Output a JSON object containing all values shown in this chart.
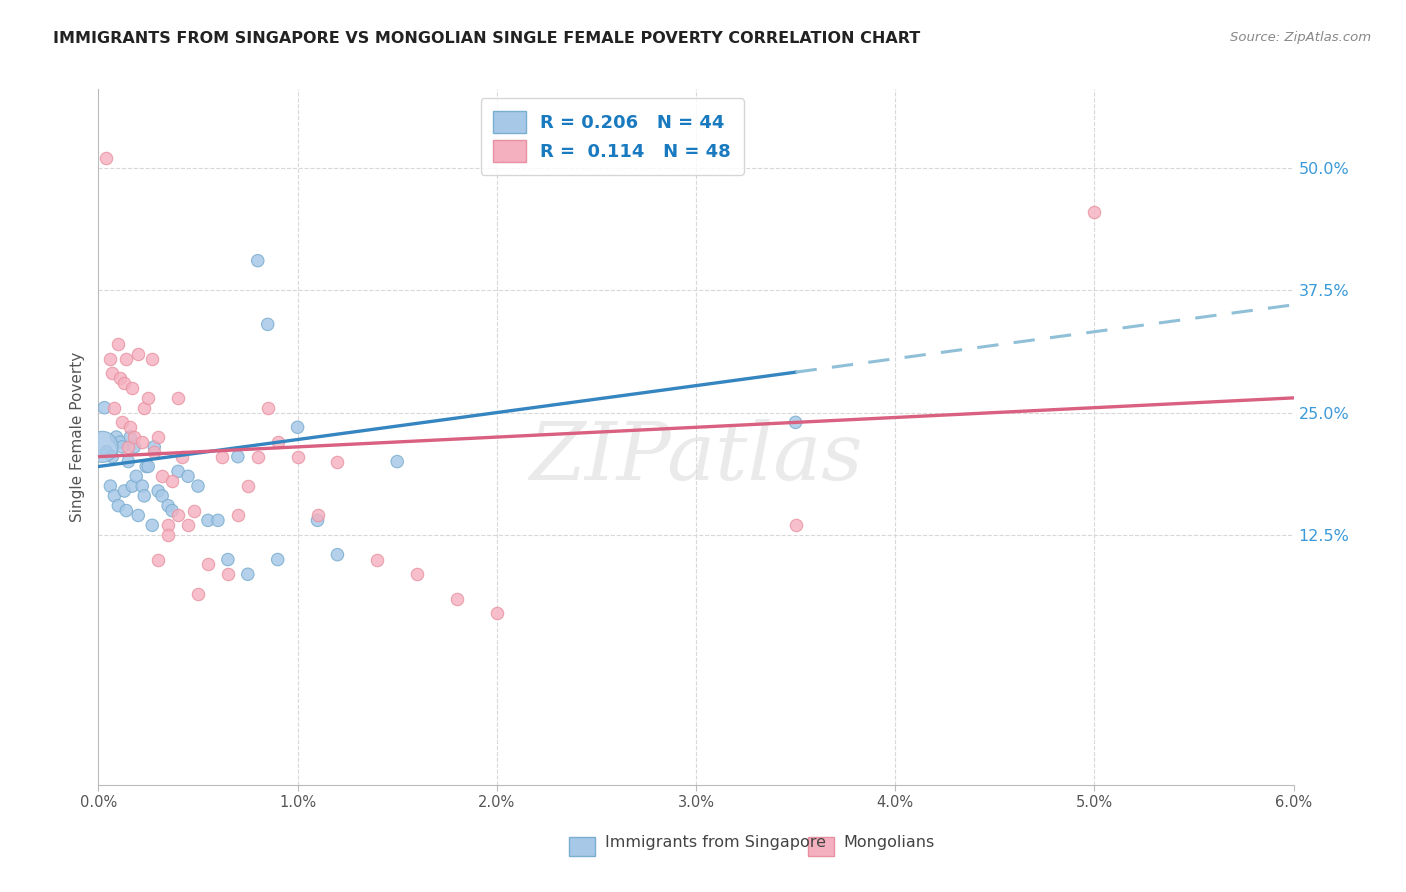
{
  "title": "IMMIGRANTS FROM SINGAPORE VS MONGOLIAN SINGLE FEMALE POVERTY CORRELATION CHART",
  "source": "Source: ZipAtlas.com",
  "ylabel": "Single Female Poverty",
  "xlim": [
    0.0,
    6.0
  ],
  "ylim": [
    -13.0,
    58.0
  ],
  "yticks": [
    12.5,
    25.0,
    37.5,
    50.0
  ],
  "ytick_labels": [
    "12.5%",
    "25.0%",
    "37.5%",
    "50.0%"
  ],
  "xtick_vals": [
    0.0,
    1.0,
    2.0,
    3.0,
    4.0,
    5.0,
    6.0
  ],
  "xtick_labels": [
    "0.0%",
    "1.0%",
    "2.0%",
    "3.0%",
    "4.0%",
    "5.0%",
    "6.0%"
  ],
  "legend_text1": "R = 0.206   N = 44",
  "legend_text2": "R =  0.114   N = 48",
  "legend_label1": "Immigrants from Singapore",
  "legend_label2": "Mongolians",
  "color_blue_face": "#a8c8e8",
  "color_blue_edge": "#7aaecf",
  "color_blue_line": "#3585c0",
  "color_pink_face": "#f5b0bf",
  "color_pink_edge": "#e8909f",
  "color_pink_line": "#d96080",
  "color_dashed": "#90c0d8",
  "watermark_zip": "ZIP",
  "watermark_atlas": "atlas",
  "blue_line_x0": 0.0,
  "blue_line_y0": 19.5,
  "blue_line_x1": 6.0,
  "blue_line_y1": 36.0,
  "blue_solid_end": 3.5,
  "pink_line_x0": 0.0,
  "pink_line_y0": 20.5,
  "pink_line_x1": 6.0,
  "pink_line_y1": 26.5,
  "blue_x": [
    0.04,
    0.06,
    0.07,
    0.08,
    0.09,
    0.1,
    0.11,
    0.12,
    0.13,
    0.14,
    0.15,
    0.16,
    0.17,
    0.18,
    0.19,
    0.2,
    0.22,
    0.23,
    0.24,
    0.25,
    0.27,
    0.28,
    0.3,
    0.32,
    0.35,
    0.37,
    0.4,
    0.45,
    0.5,
    0.55,
    0.6,
    0.65,
    0.7,
    0.75,
    0.8,
    0.85,
    0.9,
    1.0,
    1.1,
    1.2,
    1.5,
    3.5,
    0.03,
    0.02
  ],
  "blue_y": [
    21.0,
    17.5,
    20.5,
    16.5,
    22.5,
    15.5,
    22.0,
    21.5,
    17.0,
    15.0,
    20.0,
    22.5,
    17.5,
    21.5,
    18.5,
    14.5,
    17.5,
    16.5,
    19.5,
    19.5,
    13.5,
    21.5,
    17.0,
    16.5,
    15.5,
    15.0,
    19.0,
    18.5,
    17.5,
    14.0,
    14.0,
    10.0,
    20.5,
    8.5,
    40.5,
    34.0,
    10.0,
    23.5,
    14.0,
    10.5,
    20.0,
    24.0,
    25.5,
    21.5
  ],
  "blue_large_idx": 43,
  "blue_sizes_default": 80,
  "blue_size_large": 500,
  "pink_x": [
    0.04,
    0.06,
    0.07,
    0.08,
    0.1,
    0.11,
    0.12,
    0.13,
    0.14,
    0.15,
    0.16,
    0.17,
    0.18,
    0.2,
    0.22,
    0.23,
    0.25,
    0.27,
    0.28,
    0.3,
    0.32,
    0.35,
    0.37,
    0.4,
    0.42,
    0.45,
    0.48,
    0.5,
    0.55,
    0.62,
    0.65,
    0.7,
    0.75,
    0.8,
    0.85,
    0.9,
    1.0,
    1.1,
    1.2,
    1.4,
    1.6,
    1.8,
    2.0,
    3.5,
    5.0,
    0.35,
    0.4,
    0.3
  ],
  "pink_y": [
    51.0,
    30.5,
    29.0,
    25.5,
    32.0,
    28.5,
    24.0,
    28.0,
    30.5,
    21.5,
    23.5,
    27.5,
    22.5,
    31.0,
    22.0,
    25.5,
    26.5,
    30.5,
    21.0,
    22.5,
    18.5,
    13.5,
    18.0,
    14.5,
    20.5,
    13.5,
    15.0,
    6.5,
    9.5,
    20.5,
    8.5,
    14.5,
    17.5,
    20.5,
    25.5,
    22.0,
    20.5,
    14.5,
    20.0,
    10.0,
    8.5,
    6.0,
    4.5,
    13.5,
    45.5,
    12.5,
    26.5,
    10.0
  ]
}
